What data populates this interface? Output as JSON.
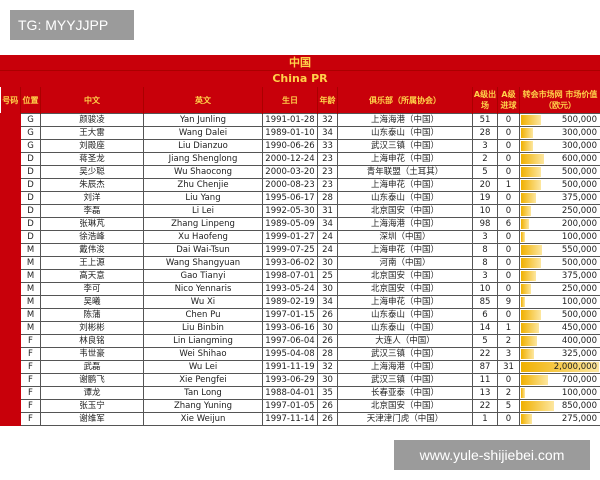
{
  "watermark_top": "TG: MYYJJPP",
  "watermark_bottom": "www.yule-shijiebei.com",
  "title_cn": "中国",
  "title_en": "China PR",
  "headers": [
    "号码",
    "位置",
    "中文",
    "英文",
    "生日",
    "年龄",
    "俱乐部（所属协会）",
    "A级出场",
    "A级进球",
    "转会市场网 市场价值（欧元）"
  ],
  "bar_color": "#f0b000",
  "header_color": "#c8000a",
  "max_value": 2000000,
  "rows": [
    [
      "G",
      "颜骏凌",
      "Yan Junling",
      "1991-01-28",
      "32",
      "上海海港（中国）",
      "51",
      "0",
      "500,000",
      500000
    ],
    [
      "G",
      "王大雷",
      "Wang Dalei",
      "1989-01-10",
      "34",
      "山东泰山（中国）",
      "28",
      "0",
      "300,000",
      300000
    ],
    [
      "G",
      "刘殿座",
      "Liu Dianzuo",
      "1990-06-26",
      "33",
      "武汉三镇（中国）",
      "3",
      "0",
      "300,000",
      300000
    ],
    [
      "D",
      "蒋圣龙",
      "Jiang Shenglong",
      "2000-12-24",
      "23",
      "上海申花（中国）",
      "2",
      "0",
      "600,000",
      600000
    ],
    [
      "D",
      "吴少聪",
      "Wu Shaocong",
      "2000-03-20",
      "23",
      "青年联盟（土耳其）",
      "5",
      "0",
      "500,000",
      500000
    ],
    [
      "D",
      "朱辰杰",
      "Zhu Chenjie",
      "2000-08-23",
      "23",
      "上海申花（中国）",
      "20",
      "1",
      "500,000",
      500000
    ],
    [
      "D",
      "刘洋",
      "Liu Yang",
      "1995-06-17",
      "28",
      "山东泰山（中国）",
      "19",
      "0",
      "375,000",
      375000
    ],
    [
      "D",
      "李磊",
      "Li Lei",
      "1992-05-30",
      "31",
      "北京国安（中国）",
      "10",
      "0",
      "250,000",
      250000
    ],
    [
      "D",
      "张琳芃",
      "Zhang Linpeng",
      "1989-05-09",
      "34",
      "上海海港（中国）",
      "98",
      "6",
      "200,000",
      200000
    ],
    [
      "D",
      "徐浩峰",
      "Xu Haofeng",
      "1999-01-27",
      "24",
      "深圳（中国）",
      "3",
      "0",
      "100,000",
      100000
    ],
    [
      "M",
      "戴伟浚",
      "Dai Wai-Tsun",
      "1999-07-25",
      "24",
      "上海申花（中国）",
      "8",
      "0",
      "550,000",
      550000
    ],
    [
      "M",
      "王上源",
      "Wang Shangyuan",
      "1993-06-02",
      "30",
      "河南（中国）",
      "8",
      "0",
      "500,000",
      500000
    ],
    [
      "M",
      "高天意",
      "Gao Tianyi",
      "1998-07-01",
      "25",
      "北京国安（中国）",
      "3",
      "0",
      "375,000",
      375000
    ],
    [
      "M",
      "李可",
      "Nico Yennaris",
      "1993-05-24",
      "30",
      "北京国安（中国）",
      "10",
      "0",
      "250,000",
      250000
    ],
    [
      "M",
      "吴曦",
      "Wu Xi",
      "1989-02-19",
      "34",
      "上海申花（中国）",
      "85",
      "9",
      "100,000",
      100000
    ],
    [
      "M",
      "陈蒲",
      "Chen Pu",
      "1997-01-15",
      "26",
      "山东泰山（中国）",
      "6",
      "0",
      "500,000",
      500000
    ],
    [
      "M",
      "刘彬彬",
      "Liu Binbin",
      "1993-06-16",
      "30",
      "山东泰山（中国）",
      "14",
      "1",
      "450,000",
      450000
    ],
    [
      "F",
      "林良铭",
      "Lin Liangming",
      "1997-06-04",
      "26",
      "大连人（中国）",
      "5",
      "2",
      "400,000",
      400000
    ],
    [
      "F",
      "韦世豪",
      "Wei Shihao",
      "1995-04-08",
      "28",
      "武汉三镇（中国）",
      "22",
      "3",
      "325,000",
      325000
    ],
    [
      "F",
      "武磊",
      "Wu Lei",
      "1991-11-19",
      "32",
      "上海海港（中国）",
      "87",
      "31",
      "2,000,000",
      2000000
    ],
    [
      "F",
      "谢鹏飞",
      "Xie Pengfei",
      "1993-06-29",
      "30",
      "武汉三镇（中国）",
      "11",
      "0",
      "700,000",
      700000
    ],
    [
      "F",
      "谭龙",
      "Tan Long",
      "1988-04-01",
      "35",
      "长春亚泰（中国）",
      "13",
      "2",
      "100,000",
      100000
    ],
    [
      "F",
      "张玉宁",
      "Zhang Yuning",
      "1997-01-05",
      "26",
      "北京国安（中国）",
      "22",
      "5",
      "850,000",
      850000
    ],
    [
      "F",
      "谢维军",
      "Xie Weijun",
      "1997-11-14",
      "26",
      "天津津门虎（中国）",
      "1",
      "0",
      "275,000",
      275000
    ]
  ]
}
